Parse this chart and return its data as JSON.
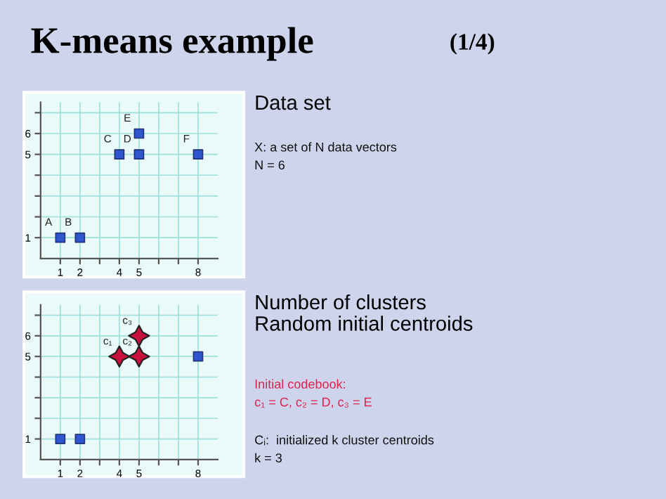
{
  "chart_data": [
    {
      "type": "other",
      "title": "K-means example",
      "subtitle": "(1/4)"
    },
    {
      "type": "scatter",
      "x": [
        1,
        2,
        4,
        5,
        5,
        8
      ],
      "xlim": [
        0,
        9
      ],
      "ylim": [
        0,
        7.5
      ],
      "xticks": [
        1,
        2,
        {
          "value": 3,
          "label": null
        },
        4,
        5,
        {
          "value": 6,
          "label": null
        },
        {
          "value": 7,
          "label": null
        },
        8
      ],
      "yticks": [
        1,
        {
          "value": 2,
          "label": null
        },
        {
          "value": 3,
          "label": null
        },
        {
          "value": 4,
          "label": null
        },
        5,
        6,
        {
          "value": 7,
          "label": null
        }
      ],
      "series": [
        {
          "color": "#2f55cf",
          "values": [
            1,
            1,
            5,
            5,
            6,
            5
          ],
          "marker": "square"
        }
      ],
      "annotations": [
        {
          "text": "A",
          "x": 1,
          "y": 1
        },
        {
          "text": "B",
          "x": 2,
          "y": 1
        },
        {
          "text": "C",
          "x": 4,
          "y": 5
        },
        {
          "text": "D",
          "x": 5,
          "y": 5
        },
        {
          "text": "E",
          "x": 5,
          "y": 6
        },
        {
          "text": "F",
          "x": 8,
          "y": 5
        }
      ],
      "grid": true,
      "legend": false
    },
    {
      "type": "other",
      "title": "Data set",
      "annotations": [
        "X: a set of N data vectors",
        "N = 6"
      ]
    },
    {
      "type": "scatter",
      "xlim": [
        0,
        9
      ],
      "ylim": [
        0,
        7.5
      ],
      "xticks": [
        1,
        2,
        {
          "value": 3,
          "label": null
        },
        4,
        5,
        {
          "value": 6,
          "label": null
        },
        {
          "value": 7,
          "label": null
        },
        8
      ],
      "yticks": [
        1,
        {
          "value": 2,
          "label": null
        },
        {
          "value": 3,
          "label": null
        },
        {
          "value": 4,
          "label": null
        },
        5,
        6,
        {
          "value": 7,
          "label": null
        }
      ],
      "series": [
        {
          "color": "#2f55cf",
          "x": [
            1,
            2,
            8
          ],
          "values": [
            1,
            1,
            5
          ],
          "marker": "square"
        },
        {
          "color": "#c8103c",
          "x": [
            4,
            5,
            5
          ],
          "values": [
            5,
            5,
            6
          ],
          "marker": "star"
        }
      ],
      "annotations": [
        {
          "text": "c₁",
          "x": 4,
          "y": 5
        },
        {
          "text": "c₂",
          "x": 5,
          "y": 5
        },
        {
          "text": "c₃",
          "x": 5,
          "y": 6
        }
      ],
      "grid": true,
      "legend": false
    },
    {
      "type": "other",
      "title": "Number of clusters\nRandom initial centroids",
      "annotations": [
        "Initial codebook:",
        "c₁ = C, c₂ = D, c₃ = E",
        "Cᵢ:  initialized k cluster centroids",
        "k = 3"
      ]
    }
  ]
}
